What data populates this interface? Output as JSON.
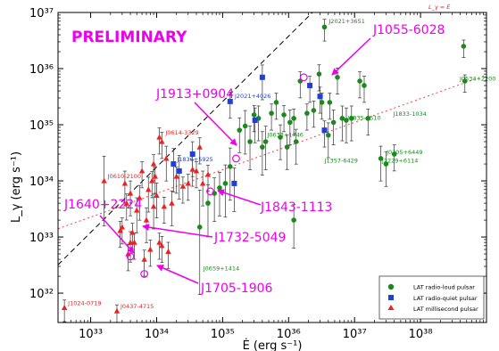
{
  "chart_data": {
    "type": "scatter",
    "title": "",
    "watermark": "PRELIMINARY",
    "xlabel": "Ė (erg s⁻¹)",
    "ylabel": "L_γ (erg s⁻¹)",
    "x_scale": "log",
    "y_scale": "log",
    "xlim": [
      3.2e+32,
      1e+39
    ],
    "ylim": [
      3e+31,
      1e+37
    ],
    "x_ticks": [
      {
        "value": 1e+33,
        "label": "10³³"
      },
      {
        "value": 1e+34,
        "label": "10³⁴"
      },
      {
        "value": 1e+35,
        "label": "10³⁵"
      },
      {
        "value": 1e+36,
        "label": "10³⁶"
      },
      {
        "value": 1e+37,
        "label": "10³⁷"
      },
      {
        "value": 1e+38,
        "label": "10³⁸"
      },
      {
        "value": 1e+39,
        "label": "10³⁹"
      }
    ],
    "y_ticks": [
      {
        "value": 1e+32,
        "label": "10³²"
      },
      {
        "value": 1e+33,
        "label": "10³³"
      },
      {
        "value": 1e+34,
        "label": "10³⁴"
      },
      {
        "value": 1e+35,
        "label": "10³⁵"
      },
      {
        "value": 1e+36,
        "label": "10³⁶"
      },
      {
        "value": 1e+37,
        "label": "10³⁷"
      }
    ],
    "grid": false,
    "legend_position": "bottom-right",
    "reference_lines": [
      {
        "name": "L_γ = Ė",
        "style": "dashed",
        "color": "#000000",
        "x": [
          3.2e+32,
          2.3e+36
        ],
        "y": [
          3.2e+32,
          1e+37
        ]
      },
      {
        "name": "L_γ ∝ √Ė",
        "style": "dotted",
        "color": "#ee4444",
        "x": [
          3.2e+32,
          1e+39
        ],
        "y": [
          1.4e+33,
          7.7e+35
        ]
      }
    ],
    "reference_line_label": "L_γ = Ė",
    "series": [
      {
        "name": "LAT radio-loud pulsar",
        "color": "#1a8a1a",
        "marker": "circle",
        "points": [
          {
            "x": 4.5e+34,
            "y": 1.5e+33,
            "err": 1.2
          },
          {
            "x": 6e+34,
            "y": 4e+33,
            "err": 0.6
          },
          {
            "x": 7.5e+34,
            "y": 6e+33,
            "err": 0.5
          },
          {
            "x": 9e+34,
            "y": 7.5e+33,
            "err": 0.5
          },
          {
            "x": 1.1e+35,
            "y": 9e+33,
            "err": 0.6
          },
          {
            "x": 1.3e+35,
            "y": 1.8e+34,
            "err": 0.6
          },
          {
            "x": 1.8e+35,
            "y": 8e+34,
            "err": 0.4
          },
          {
            "x": 2.2e+35,
            "y": 9.5e+34,
            "err": 0.5
          },
          {
            "x": 2.6e+35,
            "y": 5e+34,
            "err": 0.5
          },
          {
            "x": 3e+35,
            "y": 1.5e+35,
            "err": 0.3
          },
          {
            "x": 3.5e+35,
            "y": 1.3e+35,
            "err": 0.4
          },
          {
            "x": 4e+35,
            "y": 4e+34,
            "err": 0.5
          },
          {
            "x": 4.5e+35,
            "y": 5e+34,
            "err": 0.5
          },
          {
            "x": 5.5e+35,
            "y": 1.6e+35,
            "err": 0.3
          },
          {
            "x": 6.5e+35,
            "y": 2.5e+35,
            "err": 0.3
          },
          {
            "x": 7.5e+35,
            "y": 6e+34,
            "err": 0.4
          },
          {
            "x": 8.5e+35,
            "y": 1.5e+35,
            "err": 0.3
          },
          {
            "x": 9.5e+35,
            "y": 4e+34,
            "err": 0.4
          },
          {
            "x": 1.05e+36,
            "y": 1.1e+35,
            "err": 0.4
          },
          {
            "x": 1.2e+36,
            "y": 2e+33,
            "err": 0.5
          },
          {
            "x": 1.2e+36,
            "y": 1.3e+35,
            "err": 0.3
          },
          {
            "x": 1.3e+36,
            "y": 5e+34,
            "err": 0.4
          },
          {
            "x": 1.5e+36,
            "y": 6e+35,
            "err": 0.3
          },
          {
            "x": 1.9e+36,
            "y": 1.6e+35,
            "err": 0.3
          },
          {
            "x": 2.4e+36,
            "y": 1.8e+35,
            "err": 0.3
          },
          {
            "x": 2.9e+36,
            "y": 8e+35,
            "err": 0.3
          },
          {
            "x": 3.2e+36,
            "y": 2.5e+35,
            "err": 0.3
          },
          {
            "x": 3.5e+36,
            "y": 5.5e+36,
            "err": 0.25
          },
          {
            "x": 4e+36,
            "y": 6.5e+34,
            "err": 0.4
          },
          {
            "x": 4.2e+36,
            "y": 2.5e+35,
            "err": 0.3
          },
          {
            "x": 4.8e+36,
            "y": 1.1e+35,
            "err": 0.4
          },
          {
            "x": 5.5e+36,
            "y": 7e+35,
            "err": 0.3
          },
          {
            "x": 6.5e+36,
            "y": 1.3e+35,
            "err": 0.4
          },
          {
            "x": 7.5e+36,
            "y": 1.2e+35,
            "err": 0.4
          },
          {
            "x": 9e+36,
            "y": 1.3e+35,
            "err": 0.4
          },
          {
            "x": 1.2e+37,
            "y": 6e+35,
            "err": 0.3
          },
          {
            "x": 1.4e+37,
            "y": 5e+35,
            "err": 0.3
          },
          {
            "x": 1.6e+37,
            "y": 1.3e+35,
            "err": 0.3
          },
          {
            "x": 2.5e+37,
            "y": 2.5e+34,
            "err": 0.4
          },
          {
            "x": 3e+37,
            "y": 2e+34,
            "err": 0.4
          },
          {
            "x": 4e+37,
            "y": 3e+34,
            "err": 0.3
          },
          {
            "x": 4.5e+38,
            "y": 2.5e+36,
            "err": 0.2
          },
          {
            "x": 4.7e+38,
            "y": 6e+35,
            "err": 0.2
          }
        ]
      },
      {
        "name": "LAT radio-quiet pulsar",
        "color": "#1f3fd8",
        "marker": "square",
        "points": [
          {
            "x": 1.8e+34,
            "y": 2e+34,
            "err": 0.5
          },
          {
            "x": 2.2e+34,
            "y": 1.5e+34,
            "err": 0.5
          },
          {
            "x": 3.5e+34,
            "y": 3e+34,
            "err": 0.4
          },
          {
            "x": 1.3e+35,
            "y": 2.6e+35,
            "err": 0.3
          },
          {
            "x": 3.1e+35,
            "y": 1.2e+35,
            "err": 0.4
          },
          {
            "x": 4e+35,
            "y": 7e+35,
            "err": 0.4
          },
          {
            "x": 1.5e+35,
            "y": 9e+33,
            "err": 0.5
          },
          {
            "x": 2.1e+36,
            "y": 5e+35,
            "err": 0.3
          },
          {
            "x": 3e+36,
            "y": 3.2e+35,
            "err": 0.3
          },
          {
            "x": 3.5e+36,
            "y": 8e+34,
            "err": 0.3
          }
        ]
      },
      {
        "name": "LAT millisecond pulsar",
        "color": "#ee2020",
        "marker": "triangle",
        "points": [
          {
            "x": 4e+32,
            "y": 5.5e+31,
            "err": 0.25
          },
          {
            "x": 1.6e+33,
            "y": 1e+34,
            "err": 0.8
          },
          {
            "x": 2.5e+33,
            "y": 4.8e+31,
            "err": 0.2
          },
          {
            "x": 2.8e+33,
            "y": 1.3e+33,
            "err": 0.3
          },
          {
            "x": 3e+33,
            "y": 1.5e+33,
            "err": 0.3
          },
          {
            "x": 3.3e+33,
            "y": 9e+33,
            "err": 0.4
          },
          {
            "x": 3.5e+33,
            "y": 4e+33,
            "err": 0.3
          },
          {
            "x": 3.7e+33,
            "y": 5e+32,
            "err": 0.3
          },
          {
            "x": 4e+33,
            "y": 6e+33,
            "err": 0.4
          },
          {
            "x": 4.3e+33,
            "y": 1.2e+33,
            "err": 0.3
          },
          {
            "x": 4.6e+33,
            "y": 8e+32,
            "err": 0.3
          },
          {
            "x": 5e+33,
            "y": 3e+33,
            "err": 0.4
          },
          {
            "x": 5.5e+33,
            "y": 5e+33,
            "err": 0.4
          },
          {
            "x": 6e+33,
            "y": 1.5e+34,
            "err": 0.3
          },
          {
            "x": 6.5e+33,
            "y": 4e+32,
            "err": 0.3
          },
          {
            "x": 7e+33,
            "y": 2e+33,
            "err": 0.4
          },
          {
            "x": 7.5e+33,
            "y": 7e+33,
            "err": 0.4
          },
          {
            "x": 8e+33,
            "y": 6e+32,
            "err": 0.3
          },
          {
            "x": 8.5e+33,
            "y": 1e+34,
            "err": 0.3
          },
          {
            "x": 9e+33,
            "y": 3.5e+33,
            "err": 0.4
          },
          {
            "x": 9.5e+33,
            "y": 1.2e+34,
            "err": 0.3
          },
          {
            "x": 1e+34,
            "y": 5.5e+33,
            "err": 0.4
          },
          {
            "x": 1.1e+34,
            "y": 8e+32,
            "err": 0.3
          },
          {
            "x": 1.2e+34,
            "y": 7e+32,
            "err": 0.3
          },
          {
            "x": 1.3e+34,
            "y": 3.5e+33,
            "err": 0.3
          },
          {
            "x": 1.5e+34,
            "y": 5.5e+32,
            "err": 0.3
          },
          {
            "x": 1.7e+34,
            "y": 4e+33,
            "err": 0.4
          },
          {
            "x": 2e+34,
            "y": 1.2e+34,
            "err": 0.3
          },
          {
            "x": 2.5e+34,
            "y": 8e+33,
            "err": 0.3
          },
          {
            "x": 3e+34,
            "y": 9e+33,
            "err": 0.3
          },
          {
            "x": 3.5e+34,
            "y": 1.6e+34,
            "err": 0.3
          },
          {
            "x": 4e+34,
            "y": 1.5e+34,
            "err": 0.3
          },
          {
            "x": 4.5e+34,
            "y": 4e+34,
            "err": 0.3
          },
          {
            "x": 5e+34,
            "y": 9e+33,
            "err": 0.4
          },
          {
            "x": 6e+34,
            "y": 1.3e+34,
            "err": 0.3
          },
          {
            "x": 1.1e+34,
            "y": 6e+34,
            "err": 0.3
          },
          {
            "x": 1.2e+34,
            "y": 5e+34,
            "err": 0.3
          },
          {
            "x": 1.4e+34,
            "y": 2.5e+34,
            "err": 0.4
          },
          {
            "x": 4e+33,
            "y": 8e+32,
            "err": 0.35
          },
          {
            "x": 9e+33,
            "y": 2e+34,
            "err": 0.3
          }
        ]
      },
      {
        "name": "Highlighted pulsars (open circles)",
        "color": "#ee00ee",
        "marker": "open-circle",
        "points": [
          {
            "x": 1.7e+36,
            "y": 7e+35
          },
          {
            "x": 1.6e+35,
            "y": 2.5e+34
          },
          {
            "x": 6.5e+34,
            "y": 6.5e+33
          },
          {
            "x": 6.5e+33,
            "y": 2.2e+32
          },
          {
            "x": 4e+33,
            "y": 4.5e+32
          }
        ]
      }
    ],
    "point_labels": [
      {
        "text": "J2021+3651",
        "x": 3.6e+36,
        "y": 5.8e+36,
        "color": "#1a8a1a"
      },
      {
        "text": "J0534+2200",
        "x": 4.8e+38,
        "y": 5.5e+35,
        "color": "#1a8a1a"
      },
      {
        "text": "J2021+4026",
        "x": 1.35e+35,
        "y": 2.7e+35,
        "color": "#1f3fd8"
      },
      {
        "text": "J0614-3329",
        "x": 1.2e+34,
        "y": 6e+34,
        "color": "#ee2020"
      },
      {
        "text": "J1836+5925",
        "x": 1.8e+34,
        "y": 2e+34,
        "color": "#1f3fd8"
      },
      {
        "text": "J0610-2100",
        "x": 1.6e+33,
        "y": 1e+34,
        "color": "#ee2020"
      },
      {
        "text": "J0633+1746",
        "x": 4.2e+35,
        "y": 5.5e+34,
        "color": "#1a8a1a"
      },
      {
        "text": "J0659+1414",
        "x": 4.5e+34,
        "y": 2.3e+32,
        "color": "#1a8a1a"
      },
      {
        "text": "J1024-0719",
        "x": 4e+32,
        "y": 5.5e+31,
        "color": "#ee2020"
      },
      {
        "text": "J0437-4715",
        "x": 2.5e+33,
        "y": 4.8e+31,
        "color": "#ee2020"
      },
      {
        "text": "J0835-4510",
        "x": 6.9e+36,
        "y": 1.1e+35,
        "color": "#1a8a1a"
      },
      {
        "text": "J1833-1034",
        "x": 3.4e+37,
        "y": 1.3e+35,
        "color": "#1a8a1a"
      },
      {
        "text": "J1357-6429",
        "x": 3.1e+36,
        "y": 1.9e+34,
        "color": "#1a8a1a"
      },
      {
        "text": "J0205+6449",
        "x": 2.7e+37,
        "y": 2.7e+34,
        "color": "#1a8a1a"
      },
      {
        "text": "J2229+6114",
        "x": 2.3e+37,
        "y": 1.9e+34,
        "color": "#1a8a1a"
      }
    ],
    "annotations": [
      {
        "text": "J1055-6028",
        "color": "#ee00ee"
      },
      {
        "text": "J1913+0904",
        "color": "#ee00ee"
      },
      {
        "text": "J1843-1113",
        "color": "#ee00ee"
      },
      {
        "text": "J1640+2224",
        "color": "#ee00ee"
      },
      {
        "text": "J1732-5049",
        "color": "#ee00ee"
      },
      {
        "text": "J1705-1906",
        "color": "#ee00ee"
      }
    ],
    "legend": [
      {
        "label": "LAT radio-loud pulsar",
        "color": "#1a8a1a",
        "marker": "circle"
      },
      {
        "label": "LAT radio-quiet pulsar",
        "color": "#1f3fd8",
        "marker": "square"
      },
      {
        "label": "LAT millisecond pulsar",
        "color": "#ee2020",
        "marker": "triangle"
      }
    ]
  }
}
